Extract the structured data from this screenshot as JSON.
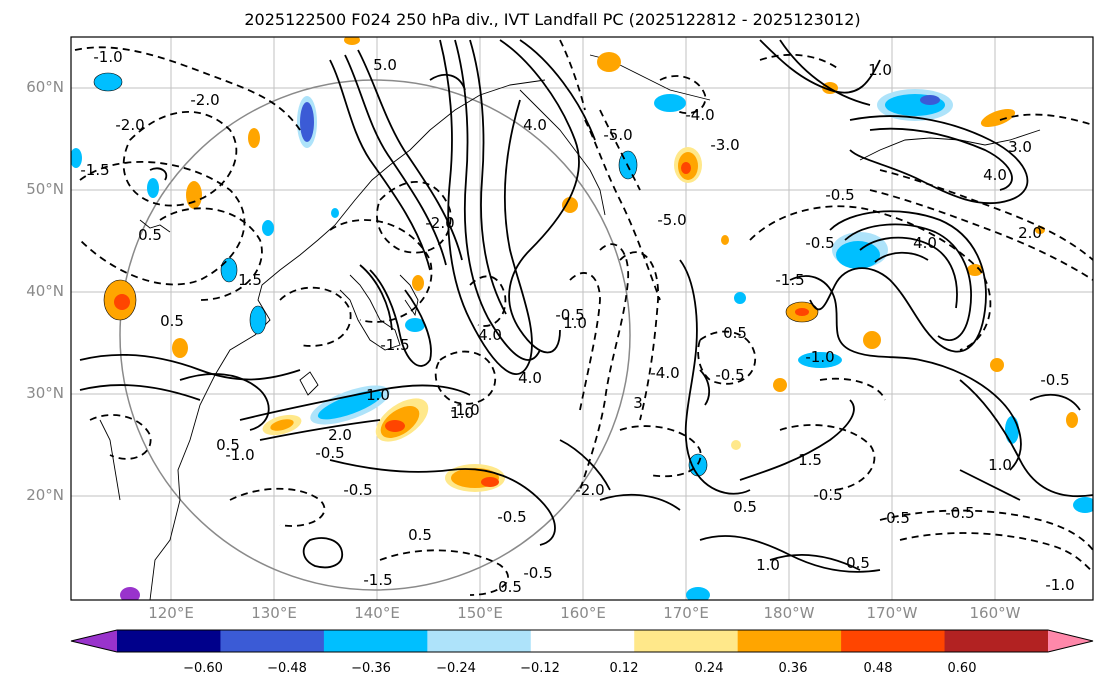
{
  "title": "2025122500 F024 250 hPa div., IVT Landfall PC (2025122812 - 2025123012)",
  "lat_labels": [
    "60°N",
    "50°N",
    "40°N",
    "30°N",
    "20°N"
  ],
  "lon_labels": [
    "120°E",
    "130°E",
    "140°E",
    "150°E",
    "160°E",
    "170°E",
    "180°W",
    "170°W",
    "160°W"
  ],
  "colorbar": {
    "ticks": [
      "−0.60",
      "−0.48",
      "−0.36",
      "−0.24",
      "−0.12",
      "0.12",
      "0.24",
      "0.36",
      "0.48",
      "0.60"
    ],
    "colors": [
      "#9933cc",
      "#00008b",
      "#3b5bd6",
      "#00bfff",
      "#aee3fa",
      "#ffffff",
      "#ffe88a",
      "#ffa500",
      "#ff4500",
      "#b22222",
      "#ff88aa"
    ]
  },
  "contour_labels": [
    {
      "text": "-1.0"
    },
    {
      "text": "-2.0"
    },
    {
      "text": "5.0"
    },
    {
      "text": "-2.0"
    },
    {
      "text": "-1.5"
    },
    {
      "text": "0.5"
    },
    {
      "text": "1.5"
    },
    {
      "text": "-2.0"
    },
    {
      "text": "0.5"
    },
    {
      "text": "-1.5"
    },
    {
      "text": "2.0"
    },
    {
      "text": "4.0"
    },
    {
      "text": "1.0"
    },
    {
      "text": "-1.0"
    },
    {
      "text": "4.0"
    },
    {
      "text": "3"
    },
    {
      "text": "-0.5"
    },
    {
      "text": "-4.0"
    },
    {
      "text": "4.0"
    },
    {
      "text": "-5.0"
    },
    {
      "text": "-4.0"
    },
    {
      "text": "-3.0"
    },
    {
      "text": "-5.0"
    },
    {
      "text": "1.0"
    },
    {
      "text": "3.0"
    },
    {
      "text": "4.0"
    },
    {
      "text": "-0.5"
    },
    {
      "text": "2.0"
    },
    {
      "text": "4.0"
    },
    {
      "text": "-0.5"
    },
    {
      "text": "-1.5"
    },
    {
      "text": "0.5"
    },
    {
      "text": "-0.5"
    },
    {
      "text": "1.5"
    },
    {
      "text": "-1.0"
    },
    {
      "text": "-0.5"
    },
    {
      "text": "0.5"
    },
    {
      "text": "-0.5"
    },
    {
      "text": "1.0"
    },
    {
      "text": "0.5"
    },
    {
      "text": "-0.5"
    },
    {
      "text": "-1.0"
    },
    {
      "text": "0.5"
    },
    {
      "text": "-1.0"
    },
    {
      "text": "-0.5"
    },
    {
      "text": "0.5"
    },
    {
      "text": "-0.5"
    },
    {
      "text": "-2.0"
    },
    {
      "text": "0.5"
    },
    {
      "text": "0.5"
    },
    {
      "text": "1.0"
    },
    {
      "text": "-1.5"
    },
    {
      "text": "1.0"
    },
    {
      "text": "-0.5"
    },
    {
      "text": "-0.5"
    },
    {
      "text": "1.0"
    }
  ]
}
